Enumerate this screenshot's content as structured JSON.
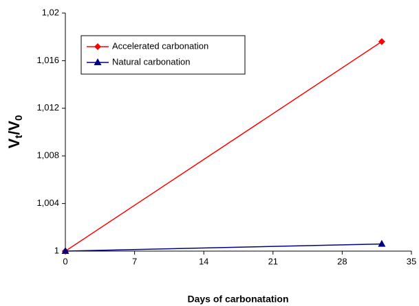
{
  "chart_data": {
    "type": "line",
    "x_label": "Days of carbonatation",
    "y_label": [
      "V",
      "t",
      "/V",
      "0"
    ],
    "xlim": [
      0,
      35
    ],
    "xticks": [
      0,
      7,
      14,
      21,
      28,
      35
    ],
    "ylim": [
      1,
      1.02
    ],
    "yticks": [
      1,
      {
        "value": 1.004,
        "label": "1,004"
      },
      {
        "value": 1.008,
        "label": "1,008"
      },
      {
        "value": 1.012,
        "label": "1,012"
      },
      {
        "value": 1.016,
        "label": "1,016"
      },
      {
        "value": 1.02,
        "label": "1,02"
      }
    ],
    "grid": false,
    "legend": "upper left",
    "series": [
      {
        "name": "Accelerated carbonation",
        "color": "#ff0000",
        "marker": "diamond",
        "x": [
          0,
          32
        ],
        "values": [
          1,
          1.0176
        ]
      },
      {
        "name": "Natural carbonation",
        "color": "#000080",
        "marker": "triangle",
        "x": [
          0,
          32
        ],
        "values": [
          1,
          1.0006
        ]
      }
    ]
  }
}
